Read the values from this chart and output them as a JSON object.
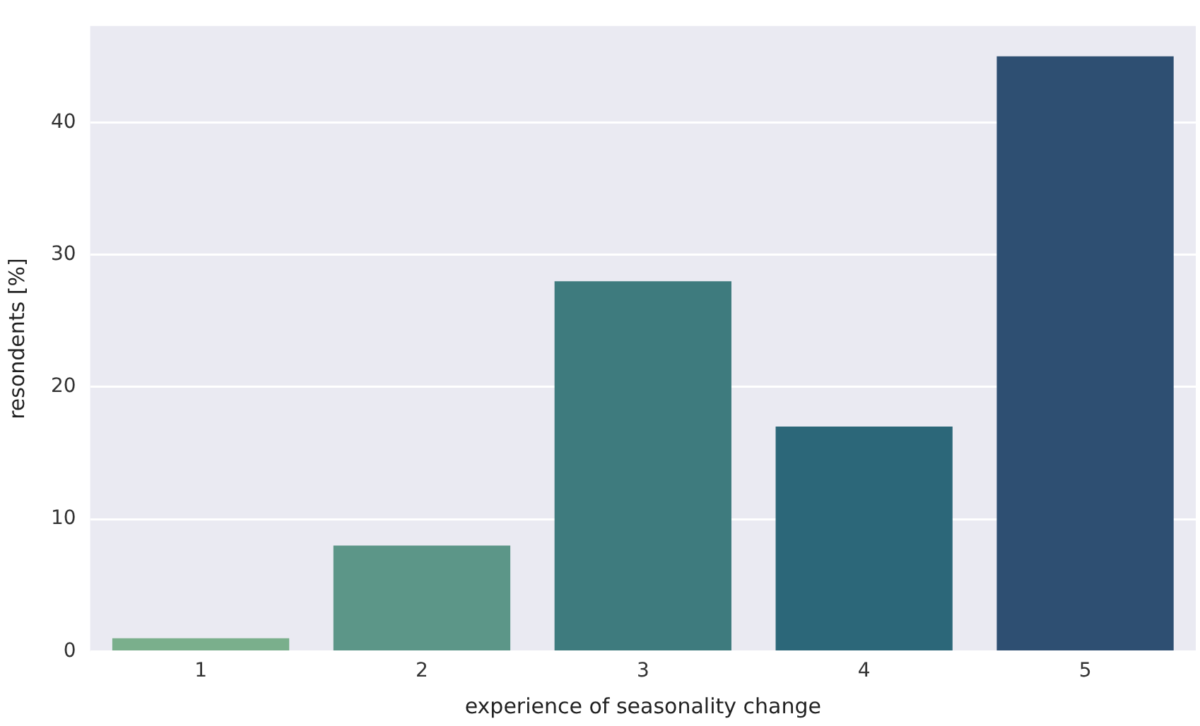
{
  "chart_data": {
    "type": "bar",
    "xlabel": "experience of seasonality change",
    "ylabel": "resondents [%]",
    "categories": [
      "1",
      "2",
      "3",
      "4",
      "5"
    ],
    "values": [
      1,
      8,
      28,
      17,
      45
    ],
    "colors": [
      "#7aaf8c",
      "#5c9688",
      "#3e7b7e",
      "#2c6779",
      "#2e4f72"
    ],
    "ylim": [
      0,
      47.3
    ],
    "yticks": [
      0,
      10,
      20,
      30,
      40
    ],
    "grid": "y",
    "legend": false
  }
}
